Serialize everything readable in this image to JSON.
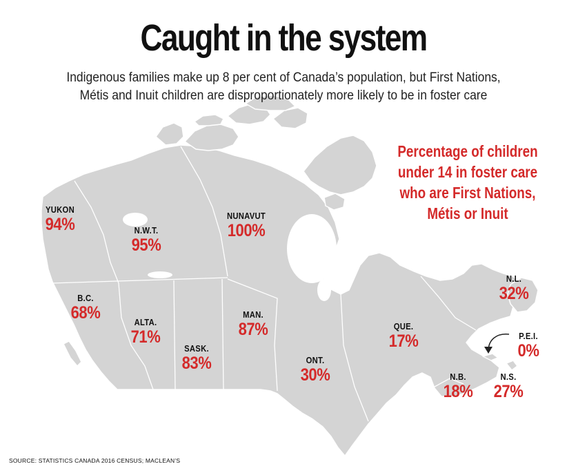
{
  "title": "Caught in the system",
  "subtitle": [
    "Indigenous families make up 8 per cent of Canada’s population, but First Nations,",
    "Métis and Inuit children are disproportionately more likely to be in foster care"
  ],
  "legend": [
    "Percentage of children",
    "under 14 in foster care",
    "who are First Nations,",
    "Métis or Inuit"
  ],
  "provinces": [
    {
      "id": "yukon",
      "name": "YUKON",
      "value": "94%"
    },
    {
      "id": "nwt",
      "name": "N.W.T.",
      "value": "95%"
    },
    {
      "id": "nunavut",
      "name": "NUNAVUT",
      "value": "100%"
    },
    {
      "id": "bc",
      "name": "B.C.",
      "value": "68%"
    },
    {
      "id": "alta",
      "name": "ALTA.",
      "value": "71%"
    },
    {
      "id": "sask",
      "name": "SASK.",
      "value": "83%"
    },
    {
      "id": "man",
      "name": "MAN.",
      "value": "87%"
    },
    {
      "id": "ont",
      "name": "ONT.",
      "value": "30%"
    },
    {
      "id": "que",
      "name": "QUE.",
      "value": "17%"
    },
    {
      "id": "nl",
      "name": "N.L.",
      "value": "32%"
    },
    {
      "id": "pei",
      "name": "P.E.I.",
      "value": "0%"
    },
    {
      "id": "nb",
      "name": "N.B.",
      "value": "18%"
    },
    {
      "id": "ns",
      "name": "N.S.",
      "value": "27%"
    }
  ],
  "source": "SOURCE: STATISTICS CANADA 2016 CENSUS; MACLEAN’S",
  "colors": {
    "land": "#d4d4d4",
    "border": "#ffffff",
    "accent": "#d42a2a",
    "text": "#111111"
  }
}
